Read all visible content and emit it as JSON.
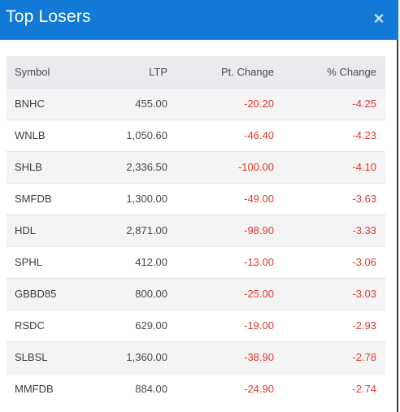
{
  "modal": {
    "title": "Top Losers",
    "close_symbol": "×"
  },
  "table": {
    "headers": {
      "symbol": "Symbol",
      "ltp": "LTP",
      "pt_change": "Pt. Change",
      "pct_change": "% Change"
    },
    "rows": [
      {
        "symbol": "BNHC",
        "ltp": "455.00",
        "pt_change": "-20.20",
        "pct_change": "-4.25"
      },
      {
        "symbol": "WNLB",
        "ltp": "1,050.60",
        "pt_change": "-46.40",
        "pct_change": "-4.23"
      },
      {
        "symbol": "SHLB",
        "ltp": "2,336.50",
        "pt_change": "-100.00",
        "pct_change": "-4.10"
      },
      {
        "symbol": "SMFDB",
        "ltp": "1,300.00",
        "pt_change": "-49.00",
        "pct_change": "-3.63"
      },
      {
        "symbol": "HDL",
        "ltp": "2,871.00",
        "pt_change": "-98.90",
        "pct_change": "-3.33"
      },
      {
        "symbol": "SPHL",
        "ltp": "412.00",
        "pt_change": "-13.00",
        "pct_change": "-3.06"
      },
      {
        "symbol": "GBBD85",
        "ltp": "800.00",
        "pt_change": "-25.00",
        "pct_change": "-3.03"
      },
      {
        "symbol": "RSDC",
        "ltp": "629.00",
        "pt_change": "-19.00",
        "pct_change": "-2.93"
      },
      {
        "symbol": "SLBSL",
        "ltp": "1,360.00",
        "pt_change": "-38.90",
        "pct_change": "-2.78"
      },
      {
        "symbol": "MMFDB",
        "ltp": "884.00",
        "pt_change": "-24.90",
        "pct_change": "-2.74"
      }
    ]
  },
  "colors": {
    "header_bg": "#1279d6",
    "negative": "#e03a2f"
  }
}
